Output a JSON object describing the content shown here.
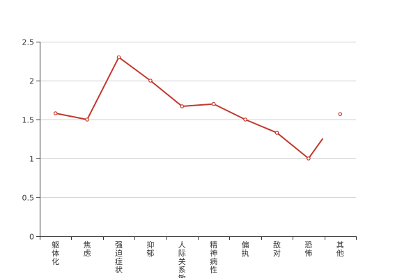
{
  "chart_data": {
    "type": "line",
    "categories": [
      "躯体化",
      "焦虑",
      "强迫症状",
      "抑郁",
      "人际关系敏感",
      "精神病性",
      "偏执",
      "敌对",
      "恐怖",
      "其他"
    ],
    "series": [
      {
        "values": [
          1.58,
          1.5,
          2.3,
          2.0,
          1.67,
          1.7,
          1.5,
          1.33,
          1.0,
          1.57
        ]
      }
    ],
    "title": "",
    "xlabel": "",
    "ylabel": "",
    "ylim": [
      0,
      2.5
    ],
    "yticks": [
      0,
      0.5,
      1,
      1.5,
      2,
      2.5
    ],
    "yticks_text": [
      "0",
      "0.5",
      "1",
      "1.5",
      "2",
      "2.5"
    ],
    "grid": true,
    "legend": "none",
    "colors": {
      "line": "#c0392b",
      "grid": "#cccccc",
      "axis": "#333333"
    }
  }
}
